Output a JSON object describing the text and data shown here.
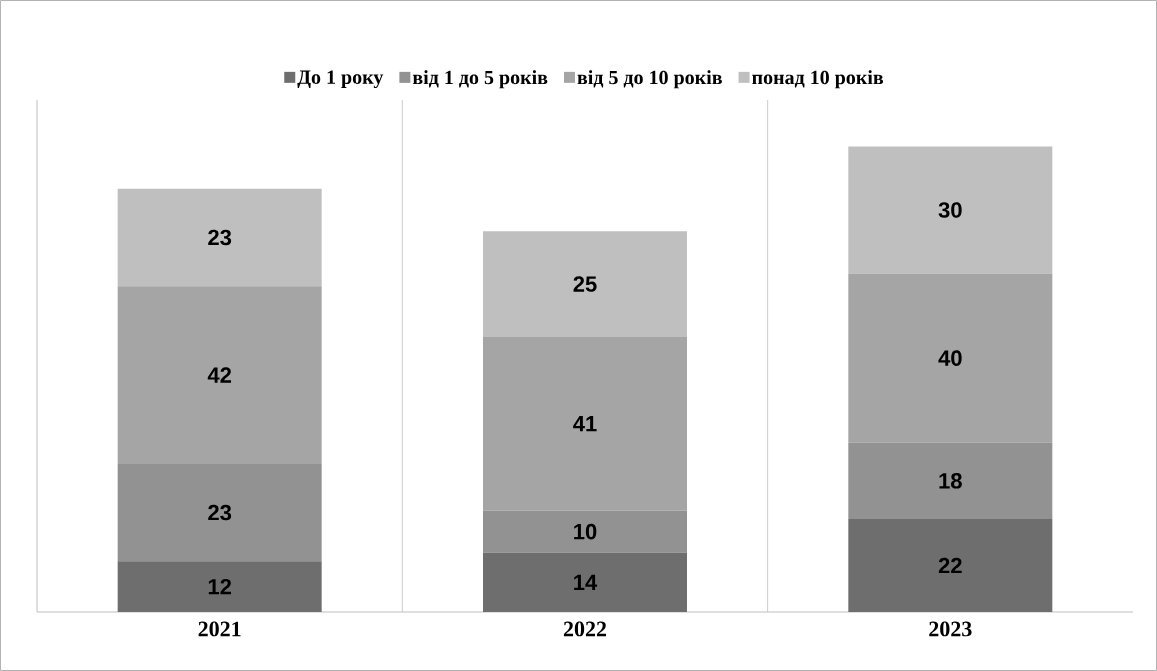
{
  "chart_data": {
    "type": "bar",
    "stacked": true,
    "categories": [
      "2021",
      "2022",
      "2023"
    ],
    "series": [
      {
        "name": "До 1 року",
        "color": "#6e6e6e",
        "values": [
          12,
          14,
          22
        ]
      },
      {
        "name": "від 1 до 5 років",
        "color": "#929292",
        "values": [
          23,
          10,
          18
        ]
      },
      {
        "name": "від 5 до 10 років",
        "color": "#a5a5a5",
        "values": [
          42,
          41,
          40
        ]
      },
      {
        "name": "понад 10 років",
        "color": "#bfbfbf",
        "values": [
          23,
          25,
          30
        ]
      }
    ],
    "data_labels": true,
    "legend": "top",
    "grid": "x"
  }
}
